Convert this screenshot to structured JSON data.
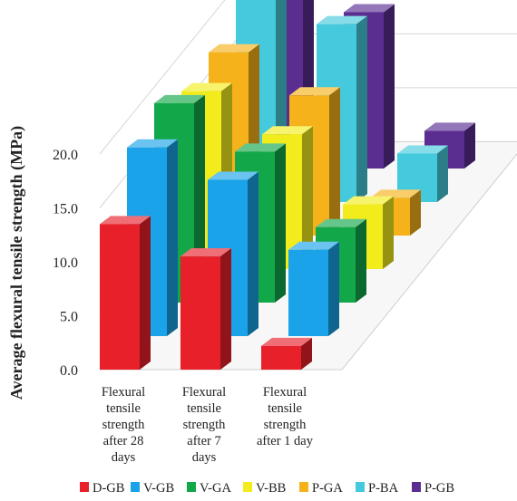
{
  "chart_data": {
    "type": "bar",
    "subtype": "3d-grouped-bar",
    "title": "",
    "ylabel": "Average flexural tensile strength (MPa)",
    "xlabel": "",
    "ylim": [
      0,
      20
    ],
    "yticks": [
      "0.0",
      "5.0",
      "10.0",
      "15.0",
      "20.0"
    ],
    "categories": [
      [
        "Flexural",
        "tensile",
        "strength",
        "after 28",
        "days"
      ],
      [
        "Flexural",
        "tensile",
        "strength",
        "after 7",
        "days"
      ],
      [
        "Flexural",
        "tensile",
        "strength",
        "after 1 day"
      ]
    ],
    "series": [
      {
        "name": "D-GB",
        "color": "#e8202a",
        "values": [
          13.5,
          10.5,
          2.2
        ]
      },
      {
        "name": "V-GB",
        "color": "#1aa3e8",
        "values": [
          17.5,
          14.5,
          8.0
        ]
      },
      {
        "name": "V-GA",
        "color": "#12a84a",
        "values": [
          18.5,
          14.0,
          7.0
        ]
      },
      {
        "name": "V-BB",
        "color": "#f2ec1d",
        "values": [
          16.5,
          12.5,
          6.0
        ]
      },
      {
        "name": "P-GA",
        "color": "#f5b21a",
        "values": [
          17.0,
          13.0,
          3.5
        ]
      },
      {
        "name": "P-BA",
        "color": "#45c9dc",
        "values": [
          19.5,
          16.5,
          4.5
        ]
      },
      {
        "name": "P-GB",
        "color": "#5a2d91",
        "values": [
          17.5,
          14.5,
          3.5
        ]
      }
    ],
    "grid": true,
    "legend_position": "bottom"
  }
}
